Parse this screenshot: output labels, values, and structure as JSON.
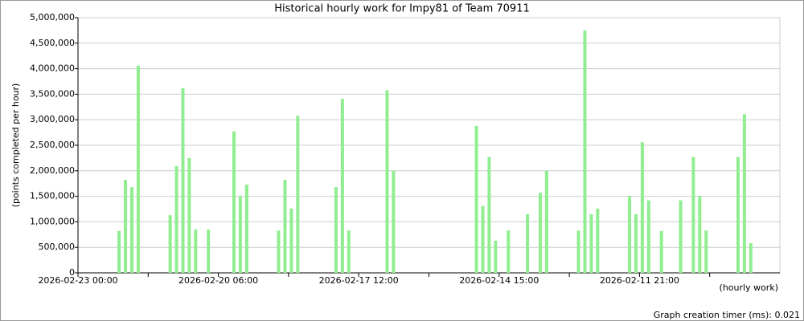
{
  "chart_data": {
    "type": "bar",
    "title": "Historical hourly work for Impy81 of Team 70911",
    "y_label": "(points completed per hour)",
    "x_label": "(hourly work)",
    "footer": "Graph creation timer (ms): 0.021",
    "color": "#90ee90",
    "grid": true,
    "categories": [
      "2026-02-23 00:00",
      null,
      null,
      null,
      null,
      null,
      null,
      null,
      null,
      null,
      null,
      null,
      null,
      null,
      null,
      null,
      null,
      null,
      null,
      null,
      null,
      null,
      "2026-02-20 06:00",
      null,
      null,
      null,
      null,
      null,
      null,
      null,
      null,
      null,
      null,
      null,
      null,
      null,
      null,
      null,
      null,
      null,
      null,
      null,
      null,
      null,
      "2026-02-17 12:00",
      null,
      null,
      null,
      null,
      null,
      null,
      null,
      null,
      null,
      null,
      null,
      null,
      null,
      null,
      null,
      null,
      null,
      null,
      null,
      null,
      null,
      "2026-02-14 15:00",
      null,
      null,
      null,
      null,
      null,
      null,
      null,
      null,
      null,
      null,
      null,
      null,
      null,
      null,
      null,
      null,
      null,
      null,
      null,
      null,
      null,
      "2026-02-11 21:00",
      null,
      null,
      null,
      null,
      null,
      null,
      null,
      null,
      null,
      null,
      null,
      null,
      null,
      null,
      null,
      null,
      null,
      null,
      null,
      null,
      null
    ],
    "values": [
      null,
      null,
      null,
      null,
      null,
      null,
      820000,
      1820000,
      1680000,
      4060000,
      null,
      null,
      null,
      null,
      1130000,
      2090000,
      3620000,
      2250000,
      850000,
      null,
      850000,
      null,
      null,
      null,
      2770000,
      1510000,
      1730000,
      null,
      null,
      null,
      null,
      830000,
      1820000,
      1260000,
      3080000,
      null,
      null,
      null,
      null,
      null,
      1680000,
      3410000,
      830000,
      null,
      null,
      null,
      null,
      null,
      3580000,
      2000000,
      null,
      null,
      null,
      null,
      null,
      null,
      null,
      null,
      null,
      null,
      null,
      null,
      2880000,
      1310000,
      2270000,
      630000,
      null,
      830000,
      null,
      null,
      1150000,
      null,
      1570000,
      2000000,
      null,
      null,
      null,
      null,
      830000,
      4750000,
      1150000,
      1260000,
      null,
      null,
      null,
      null,
      1510000,
      1150000,
      2560000,
      1420000,
      null,
      820000,
      null,
      null,
      1420000,
      null,
      2270000,
      1510000,
      830000,
      null,
      null,
      null,
      null,
      2270000,
      3110000,
      580000,
      null,
      null,
      null,
      null
    ],
    "ylim": [
      0,
      5000000
    ],
    "yticks": [
      0,
      {
        "value": 500000,
        "label": "500,000"
      },
      {
        "value": 1000000,
        "label": "1,000,000"
      },
      {
        "value": 1500000,
        "label": "1,500,000"
      },
      {
        "value": 2000000,
        "label": "2,000,000"
      },
      {
        "value": 2500000,
        "label": "2,500,000"
      },
      {
        "value": 3000000,
        "label": "3,000,000"
      },
      {
        "value": 3500000,
        "label": "3,500,000"
      },
      {
        "value": 4000000,
        "label": "4,000,000"
      },
      {
        "value": 4500000,
        "label": "4,500,000"
      },
      {
        "value": 5000000,
        "label": "5,000,000"
      }
    ]
  }
}
